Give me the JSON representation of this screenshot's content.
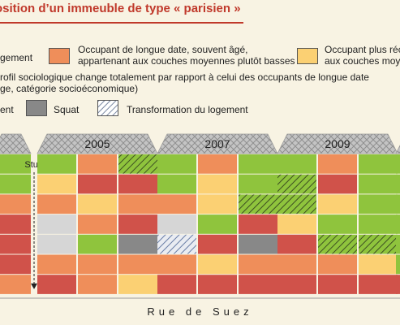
{
  "title": "osition d’un immeuble de type « parisien »",
  "legend": {
    "row1_left": "gement",
    "row1_mid": "Occupant de longue date, souvent âgé,\nappartenant aux couches moyennes plutôt basses",
    "row1_right": "Occupant plus réc\naux couches moye",
    "row2_line1": "rofil sociologique change totalement par rapport à celui des occupants de longue date",
    "row2_line2": "ge, catégorie socioéconomique)",
    "row3_left": "ent",
    "row3_squat": "Squat",
    "row3_transform": "Transformation du logement"
  },
  "colors": {
    "orange": "#ef8e5a",
    "yellow": "#fbd073",
    "green": "#8fc43d",
    "red": "#d0524a",
    "grey": "#d6d6d6",
    "darkgrey": "#888888",
    "roof": "#b8b8b8",
    "bg": "#f8f3e3",
    "title": "#c0392b"
  },
  "buildings": [
    {
      "year": "",
      "studio_label": "Studio",
      "cells": [
        [
          "green"
        ],
        [
          "green"
        ],
        [
          "orange"
        ],
        [
          "red"
        ],
        [
          "red"
        ],
        [
          "red"
        ],
        [
          "orange"
        ]
      ]
    },
    {
      "year": "2005",
      "cells": [
        [
          "green",
          "orange",
          "green-hatch"
        ],
        [
          "yellow",
          "red",
          "red"
        ],
        [
          "orange",
          "yellow",
          "orange"
        ],
        [
          "grey",
          "orange",
          "red"
        ],
        [
          "grey",
          "green",
          "darkgrey"
        ],
        [
          "orange",
          "orange",
          "orange"
        ],
        [
          "red",
          "orange",
          "yellow"
        ]
      ]
    },
    {
      "year": "2007",
      "cells": [
        [
          "green",
          "orange",
          "green"
        ],
        [
          "green",
          "yellow",
          "green"
        ],
        [
          "orange",
          "yellow",
          "green-hatch"
        ],
        [
          "grey",
          "green",
          "red"
        ],
        [
          "grey-hatch",
          "red",
          "darkgrey"
        ],
        [
          "orange",
          "yellow",
          "orange"
        ],
        [
          "red",
          "red",
          "red"
        ]
      ]
    },
    {
      "year": "2009",
      "cells": [
        [
          "green",
          "orange",
          "green"
        ],
        [
          "green-hatch",
          "red",
          "green"
        ],
        [
          "green-hatch",
          "yellow",
          "green"
        ],
        [
          "yellow",
          "green",
          "green"
        ],
        [
          "red",
          "green-hatch",
          "green-hatch"
        ],
        [
          "orange",
          "orange",
          "yellow"
        ],
        [
          "red",
          "red",
          "red"
        ]
      ]
    },
    {
      "year": "",
      "cells": [
        [
          "green"
        ],
        [
          "green"
        ],
        [
          "green"
        ],
        [
          "green"
        ],
        [
          "green"
        ],
        [
          "green"
        ],
        [
          "red"
        ]
      ]
    }
  ],
  "street": "Rue de Suez"
}
